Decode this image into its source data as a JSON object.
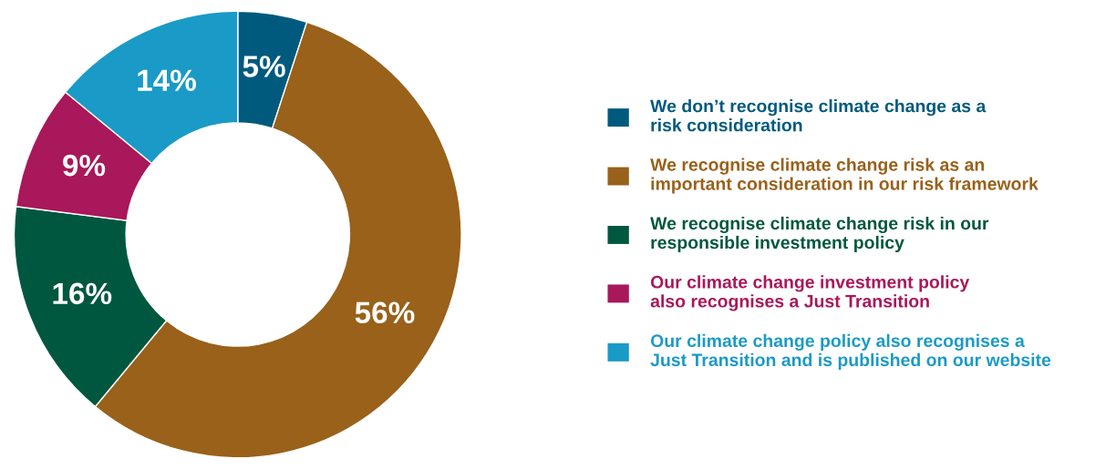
{
  "chart_data": {
    "type": "donut",
    "categories": [
      "We don’t recognise climate change as a\nrisk consideration",
      "We recognise climate change risk as an\nimportant consideration in our risk framework",
      "We recognise climate change risk in our\nresponsible investment policy",
      "Our climate change investment policy\nalso recognises a Just Transition",
      "Our climate change policy also recognises a\nJust Transition and is published on our website"
    ],
    "values": [
      5,
      56,
      16,
      9,
      14
    ],
    "colors": [
      "#005a7e",
      "#99611a",
      "#00573f",
      "#a8185a",
      "#1a9ac6"
    ],
    "value_labels": [
      "5%",
      "56%",
      "16%",
      "9%",
      "14%"
    ],
    "legend": "right"
  }
}
